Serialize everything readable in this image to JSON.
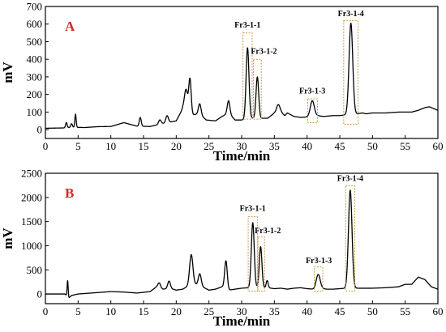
{
  "chart_data": [
    {
      "type": "line",
      "panel": "A",
      "xlabel": "Time/min",
      "ylabel": "mV",
      "xlim": [
        0,
        60
      ],
      "ylim": [
        -50,
        700
      ],
      "xticks": [
        0,
        5,
        10,
        15,
        20,
        25,
        30,
        35,
        40,
        45,
        50,
        55,
        60
      ],
      "yticks": [
        0,
        100,
        200,
        300,
        400,
        500,
        600,
        700
      ],
      "baseline": [
        [
          0,
          8
        ],
        [
          3,
          10
        ],
        [
          4,
          14
        ],
        [
          6,
          12
        ],
        [
          8,
          17
        ],
        [
          10,
          18
        ],
        [
          12,
          40
        ],
        [
          13,
          30
        ],
        [
          14,
          20
        ],
        [
          16,
          18
        ],
        [
          18,
          35
        ],
        [
          20,
          50
        ],
        [
          21,
          120
        ],
        [
          22.6,
          85
        ],
        [
          23.5,
          90
        ],
        [
          24.6,
          55
        ],
        [
          26,
          50
        ],
        [
          27,
          75
        ],
        [
          28,
          95
        ],
        [
          29,
          55
        ],
        [
          30,
          55
        ],
        [
          30.9,
          60
        ],
        [
          31.6,
          65
        ],
        [
          32.4,
          70
        ],
        [
          33,
          65
        ],
        [
          34,
          65
        ],
        [
          35,
          95
        ],
        [
          36,
          100
        ],
        [
          36.6,
          80
        ],
        [
          37,
          95
        ],
        [
          38,
          75
        ],
        [
          39,
          70
        ],
        [
          40,
          72
        ],
        [
          40.8,
          80
        ],
        [
          41.6,
          80
        ],
        [
          42.5,
          75
        ],
        [
          44,
          80
        ],
        [
          45,
          80
        ],
        [
          46,
          85
        ],
        [
          46.7,
          90
        ],
        [
          47.6,
          90
        ],
        [
          48.5,
          95
        ],
        [
          49,
          90
        ],
        [
          50,
          95
        ],
        [
          52,
          95
        ],
        [
          54,
          100
        ],
        [
          56,
          100
        ],
        [
          57,
          110
        ],
        [
          58,
          125
        ],
        [
          58.7,
          130
        ],
        [
          60,
          110
        ]
      ],
      "peaks": [
        {
          "t": 3.2,
          "h": 30,
          "w": 0.12
        },
        {
          "t": 4.0,
          "h": 20,
          "w": 0.12
        },
        {
          "t": 4.6,
          "h": 75,
          "w": 0.1
        },
        {
          "t": 14.5,
          "h": 50,
          "w": 0.15
        },
        {
          "t": 17.5,
          "h": 25,
          "w": 0.2
        },
        {
          "t": 18.6,
          "h": 40,
          "w": 0.2
        },
        {
          "t": 21.5,
          "h": 120,
          "w": 0.25
        },
        {
          "t": 22.1,
          "h": 190,
          "w": 0.18
        },
        {
          "t": 23.6,
          "h": 60,
          "w": 0.2
        },
        {
          "t": 28.0,
          "h": 70,
          "w": 0.2
        },
        {
          "t": 30.9,
          "h": 405,
          "w": 0.22
        },
        {
          "t": 32.4,
          "h": 230,
          "w": 0.2
        },
        {
          "t": 35.6,
          "h": 45,
          "w": 0.25
        },
        {
          "t": 40.8,
          "h": 85,
          "w": 0.3
        },
        {
          "t": 46.7,
          "h": 515,
          "w": 0.28
        }
      ],
      "annotations": [
        {
          "label": "Fr3-1-1",
          "t": 30.9,
          "box_t": [
            30.2,
            31.6
          ],
          "box_y": [
            60,
            550
          ],
          "label_t": 30.9,
          "label_y": 580
        },
        {
          "label": "Fr3-1-2",
          "t": 32.4,
          "box_t": [
            31.8,
            33.0
          ],
          "box_y": [
            60,
            400
          ],
          "label_t": 33.4,
          "label_y": 430
        },
        {
          "label": "Fr3-1-3",
          "t": 40.8,
          "box_t": [
            40.1,
            41.6
          ],
          "box_y": [
            40,
            175
          ],
          "label_t": 40.8,
          "label_y": 205
        },
        {
          "label": "Fr3-1-4",
          "t": 46.7,
          "box_t": [
            45.6,
            47.8
          ],
          "box_y": [
            30,
            620
          ],
          "label_t": 46.7,
          "label_y": 645
        }
      ]
    },
    {
      "type": "line",
      "panel": "B",
      "xlabel": "Time/min",
      "ylabel": "mV",
      "xlim": [
        0,
        60
      ],
      "ylim": [
        -200,
        2500
      ],
      "xticks": [
        0,
        5,
        10,
        15,
        20,
        25,
        30,
        35,
        40,
        45,
        50,
        55,
        60
      ],
      "yticks": [
        0,
        500,
        1000,
        1500,
        2000,
        2500
      ],
      "baseline": [
        [
          0,
          0
        ],
        [
          3,
          0
        ],
        [
          3.6,
          -80
        ],
        [
          4,
          -30
        ],
        [
          5,
          0
        ],
        [
          8,
          30
        ],
        [
          10,
          50
        ],
        [
          12,
          40
        ],
        [
          14,
          20
        ],
        [
          16,
          50
        ],
        [
          17,
          150
        ],
        [
          18,
          100
        ],
        [
          19,
          120
        ],
        [
          20,
          80
        ],
        [
          21,
          100
        ],
        [
          22,
          180
        ],
        [
          22.9,
          200
        ],
        [
          24,
          150
        ],
        [
          25,
          80
        ],
        [
          26,
          100
        ],
        [
          27,
          150
        ],
        [
          28,
          80
        ],
        [
          29,
          100
        ],
        [
          30,
          120
        ],
        [
          31,
          130
        ],
        [
          32,
          140
        ],
        [
          33,
          130
        ],
        [
          34,
          130
        ],
        [
          35,
          110
        ],
        [
          36,
          120
        ],
        [
          37,
          100
        ],
        [
          38,
          120
        ],
        [
          39,
          130
        ],
        [
          40,
          110
        ],
        [
          41,
          100
        ],
        [
          42,
          120
        ],
        [
          43,
          100
        ],
        [
          44,
          100
        ],
        [
          45,
          110
        ],
        [
          46,
          120
        ],
        [
          47,
          120
        ],
        [
          48,
          120
        ],
        [
          50,
          120
        ],
        [
          52,
          130
        ],
        [
          54,
          150
        ],
        [
          55,
          200
        ],
        [
          56,
          200
        ],
        [
          57,
          350
        ],
        [
          58,
          300
        ],
        [
          59,
          150
        ],
        [
          60,
          100
        ]
      ],
      "peaks": [
        {
          "t": 3.4,
          "h": 330,
          "w": 0.08
        },
        {
          "t": 17.4,
          "h": 100,
          "w": 0.2
        },
        {
          "t": 18.9,
          "h": 150,
          "w": 0.2
        },
        {
          "t": 22.3,
          "h": 630,
          "w": 0.25
        },
        {
          "t": 23.6,
          "h": 250,
          "w": 0.22
        },
        {
          "t": 27.6,
          "h": 580,
          "w": 0.2
        },
        {
          "t": 31.7,
          "h": 1340,
          "w": 0.22
        },
        {
          "t": 32.9,
          "h": 850,
          "w": 0.2
        },
        {
          "t": 33.9,
          "h": 150,
          "w": 0.15
        },
        {
          "t": 41.7,
          "h": 290,
          "w": 0.3
        },
        {
          "t": 46.6,
          "h": 2030,
          "w": 0.27
        }
      ],
      "annotations": [
        {
          "label": "Fr3-1-1",
          "t": 31.7,
          "box_t": [
            31.0,
            32.4
          ],
          "box_y": [
            60,
            1600
          ],
          "label_t": 31.7,
          "label_y": 1720
        },
        {
          "label": "Fr3-1-2",
          "t": 32.9,
          "box_t": [
            32.5,
            33.5
          ],
          "box_y": [
            60,
            1180
          ],
          "label_t": 34.0,
          "label_y": 1260
        },
        {
          "label": "Fr3-1-3",
          "t": 41.7,
          "box_t": [
            41.1,
            42.4
          ],
          "box_y": [
            60,
            560
          ],
          "label_t": 41.8,
          "label_y": 640
        },
        {
          "label": "Fr3-1-4",
          "t": 46.6,
          "box_t": [
            45.9,
            47.3
          ],
          "box_y": [
            60,
            2240
          ],
          "label_t": 46.6,
          "label_y": 2340
        }
      ]
    }
  ]
}
